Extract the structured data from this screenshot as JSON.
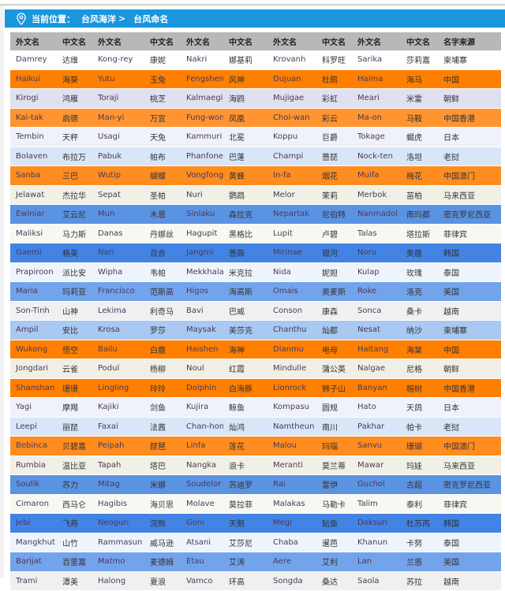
{
  "breadcrumb": {
    "label": "当前位置：",
    "parent": "台风海洋",
    "separator": ">",
    "current": "台风命名"
  },
  "table": {
    "headers": [
      "外文名",
      "中文名",
      "外文名",
      "中文名",
      "外文名",
      "中文名",
      "外文名",
      "中文名",
      "外文名",
      "中文名",
      "名字来源"
    ],
    "rows": [
      {
        "bg": "#ffffff",
        "cells": [
          "Damrey",
          "达维",
          "Kong-rey",
          "康妮",
          "Nakri",
          "娜基莉",
          "Krovanh",
          "科罗旺",
          "Sarika",
          "莎莉嘉",
          "柬埔寨"
        ]
      },
      {
        "bg": "#ff7f00",
        "cells": [
          "Haikui",
          "海葵",
          "Yutu",
          "玉兔",
          "Fengshen",
          "风神",
          "Dujuan",
          "杜鹃",
          "Haima",
          "海马",
          "中国"
        ]
      },
      {
        "bg": "#dfe0f0",
        "cells": [
          "Kirogi",
          "鸿雁",
          "Toraji",
          "桃芝",
          "Kalmaegi",
          "海鸥",
          "Mujigae",
          "彩虹",
          "Meari",
          "米雷",
          "朝鲜"
        ]
      },
      {
        "bg": "#ff9430",
        "cells": [
          "Kai-tak",
          "启德",
          "Man-yi",
          "万宜",
          "Fung-wong",
          "凤凰",
          "Choi-wan",
          "彩云",
          "Ma-on",
          "马鞍",
          "中国香港"
        ]
      },
      {
        "bg": "#f0f2fa",
        "cells": [
          "Tembin",
          "天秤",
          "Usagi",
          "天兔",
          "Kammuri",
          "北冕",
          "Koppu",
          "巨爵",
          "Tokage",
          "蝎虎",
          "日本"
        ]
      },
      {
        "bg": "#d8e6f8",
        "cells": [
          "Bolaven",
          "布拉万",
          "Pabuk",
          "帕布",
          "Phanfone",
          "巴蓬",
          "Champi",
          "蔷琵",
          "Nock-ten",
          "洛坦",
          "老挝"
        ]
      },
      {
        "bg": "#ff8c1f",
        "cells": [
          "Sanba",
          "三巴",
          "Wutip",
          "蝴蝶",
          "Vongfong",
          "黄蜂",
          "In-fa",
          "烟花",
          "Muifa",
          "梅花",
          "中国澳门"
        ]
      },
      {
        "bg": "#f0f0e6",
        "cells": [
          "Jelawat",
          "杰拉华",
          "Sepat",
          "圣帕",
          "Nuri",
          "鹦鹉",
          "Melor",
          "茉莉",
          "Merbok",
          "苗柏",
          "马来西亚"
        ]
      },
      {
        "bg": "#5b93e3",
        "cells": [
          "Ewiniar",
          "艾云尼",
          "Mun",
          "木恩",
          "Sinlaku",
          "森拉克",
          "Nepartak",
          "尼伯特",
          "Nanmadol",
          "南玛都",
          "密克罗尼西亚"
        ]
      },
      {
        "bg": "#f8f8f2",
        "cells": [
          "Maliksi",
          "马力斯",
          "Danas",
          "丹娜丝",
          "Hagupit",
          "黑格比",
          "Lupit",
          "卢碧",
          "Talas",
          "塔拉斯",
          "菲律宾"
        ]
      },
      {
        "bg": "#4283e3",
        "cells": [
          "Gaemi",
          "格美",
          "Nari",
          "百合",
          "Jangmi",
          "蔷薇",
          "Mirinae",
          "银河",
          "Noru",
          "奥鹿",
          "韩国"
        ]
      },
      {
        "bg": "#eef4fc",
        "cells": [
          "Prapiroon",
          "派比安",
          "Wipha",
          "韦帕",
          "Mekkhala",
          "米克拉",
          "Nida",
          "妮妲",
          "Kulap",
          "玫瑰",
          "泰国"
        ]
      },
      {
        "bg": "#73a3ea",
        "cells": [
          "Maria",
          "玛莉亚",
          "Francisco",
          "范斯高",
          "Higos",
          "海高斯",
          "Omais",
          "奥麦斯",
          "Roke",
          "洛克",
          "美国"
        ]
      },
      {
        "bg": "#f0f0f0",
        "cells": [
          "Son-Tinh",
          "山神",
          "Lekima",
          "利奇马",
          "Bavi",
          "巴威",
          "Conson",
          "康森",
          "Sonca",
          "桑卡",
          "越南"
        ]
      },
      {
        "bg": "#a9c8f2",
        "cells": [
          "Ampil",
          "安比",
          "Krosa",
          "罗莎",
          "Maysak",
          "美莎克",
          "Chanthu",
          "灿都",
          "Nesat",
          "纳沙",
          "柬埔寨"
        ]
      },
      {
        "bg": "#ff7f00",
        "cells": [
          "Wukong",
          "悟空",
          "Bailu",
          "白鹿",
          "Haishen",
          "海神",
          "Dianmu",
          "电母",
          "Haitang",
          "海棠",
          "中国"
        ]
      },
      {
        "bg": "#f0efe6",
        "cells": [
          "Jongdari",
          "云雀",
          "Podul",
          "杨柳",
          "Noul",
          "红霞",
          "Mindulle",
          "蒲公英",
          "Nalgae",
          "尼格",
          "朝鲜"
        ]
      },
      {
        "bg": "#ff7f00",
        "cells": [
          "Shanshan",
          "珊珊",
          "Lingling",
          "玲玲",
          "Dolphin",
          "白海豚",
          "Lionrock",
          "狮子山",
          "Banyan",
          "榕树",
          "中国香港"
        ]
      },
      {
        "bg": "#f0f2fa",
        "cells": [
          "Yagi",
          "摩羯",
          "Kajiki",
          "剑鱼",
          "Kujira",
          "鲸鱼",
          "Kompasu",
          "圆规",
          "Hato",
          "天鸽",
          "日本"
        ]
      },
      {
        "bg": "#d8e6f8",
        "cells": [
          "Leepi",
          "丽琵",
          "Faxai",
          "法茜",
          "Chan-hom",
          "灿鸿",
          "Namtheun",
          "南川",
          "Pakhar",
          "帕卡",
          "老挝"
        ]
      },
      {
        "bg": "#ff8c1f",
        "cells": [
          "Bebinca",
          "贝碧嘉",
          "Peipah",
          "琵琶",
          "Linfa",
          "莲花",
          "Malou",
          "玛瑙",
          "Sanvu",
          "珊瑚",
          "中国澳门"
        ]
      },
      {
        "bg": "#f0f0e6",
        "cells": [
          "Rumbia",
          "温比亚",
          "Tapah",
          "塔巴",
          "Nangka",
          "浪卡",
          "Meranti",
          "莫兰蒂",
          "Mawar",
          "玛娃",
          "马来西亚"
        ]
      },
      {
        "bg": "#5b93e3",
        "cells": [
          "Soulik",
          "苏力",
          "Mitag",
          "米娜",
          "Soudelor",
          "苏迪罗",
          "Rai",
          "雷伊",
          "Guchol",
          "古超",
          "密克罗尼西亚"
        ]
      },
      {
        "bg": "#f8f8f2",
        "cells": [
          "Cimaron",
          "西马仑",
          "Hagibis",
          "海贝思",
          "Molave",
          "莫拉菲",
          "Malakas",
          "马勒卡",
          "Talim",
          "泰利",
          "菲律宾"
        ]
      },
      {
        "bg": "#4283e3",
        "cells": [
          "Jebi",
          "飞燕",
          "Neoguri",
          "浣熊",
          "Goni",
          "天鹅",
          "Megi",
          "鲇鱼",
          "Doksuri",
          "杜苏芮",
          "韩国"
        ]
      },
      {
        "bg": "#eef4fc",
        "cells": [
          "Mangkhut",
          "山竹",
          "Rammasun",
          "威马逊",
          "Atsani",
          "艾莎尼",
          "Chaba",
          "暹芭",
          "Khanun",
          "卡努",
          "泰国"
        ]
      },
      {
        "bg": "#73a3ea",
        "cells": [
          "Barijat",
          "百里嘉",
          "Matmo",
          "麦德姆",
          "Etau",
          "艾涛",
          "Aere",
          "艾利",
          "Lan",
          "兰恩",
          "美国"
        ]
      },
      {
        "bg": "#f0f0f0",
        "cells": [
          "Trami",
          "潭美",
          "Halong",
          "夏浪",
          "Vamco",
          "环高",
          "Songda",
          "桑达",
          "Saola",
          "苏拉",
          "越南"
        ]
      }
    ]
  }
}
